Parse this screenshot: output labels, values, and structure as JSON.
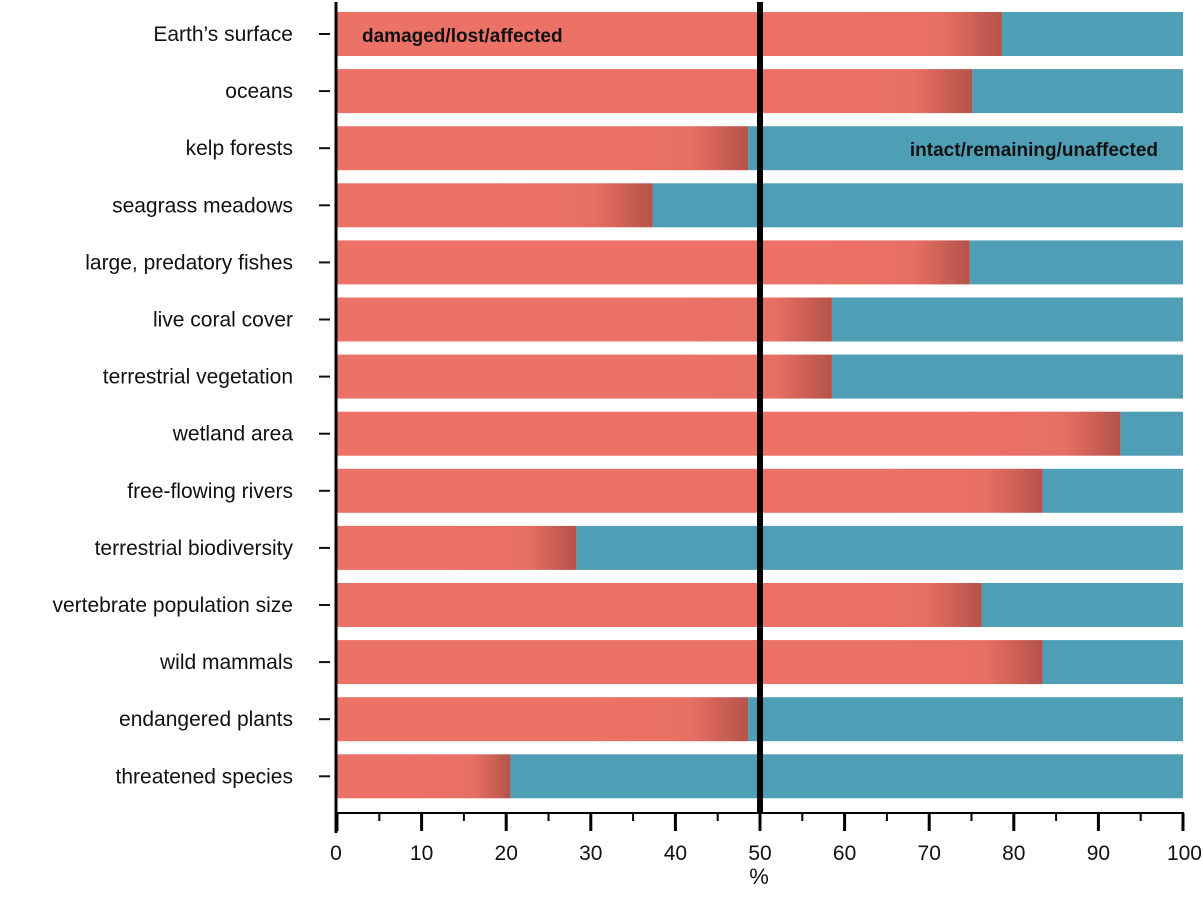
{
  "chart_data": {
    "type": "bar",
    "orientation": "horizontal",
    "stacked": true,
    "categories": [
      "Earth’s surface",
      "oceans",
      "kelp forests",
      "seagrass meadows",
      "large, predatory fishes",
      "live coral cover",
      "terrestrial vegetation",
      "wetland area",
      "free-flowing rivers",
      "terrestrial biodiversity",
      "vertebrate population size",
      "wild mammals",
      "endangered plants",
      "threatened species"
    ],
    "series": [
      {
        "name": "damaged/lost/affected",
        "color": "#ec7166",
        "values": [
          78.6,
          75.1,
          48.6,
          37.3,
          74.8,
          58.5,
          58.5,
          92.6,
          83.4,
          28.3,
          76.2,
          83.4,
          48.6,
          20.5
        ]
      },
      {
        "name": "intact/remaining/unaffected",
        "color": "#4e9fb6",
        "values": [
          21.4,
          24.9,
          51.4,
          62.7,
          25.2,
          41.5,
          41.5,
          7.4,
          16.6,
          71.7,
          23.8,
          16.6,
          51.4,
          79.5
        ]
      }
    ],
    "xlabel": "%",
    "ylabel": "",
    "title": "",
    "xlim": [
      0,
      100
    ],
    "xticks": [
      0,
      10,
      20,
      30,
      40,
      50,
      60,
      70,
      80,
      90,
      100
    ],
    "reference_line": 50,
    "annotations": [
      {
        "text": "damaged/lost/affected",
        "category": "Earth’s surface"
      },
      {
        "text": "intact/remaining/unaffected",
        "category": "kelp forests"
      }
    ],
    "grid": false,
    "legend": "none"
  }
}
